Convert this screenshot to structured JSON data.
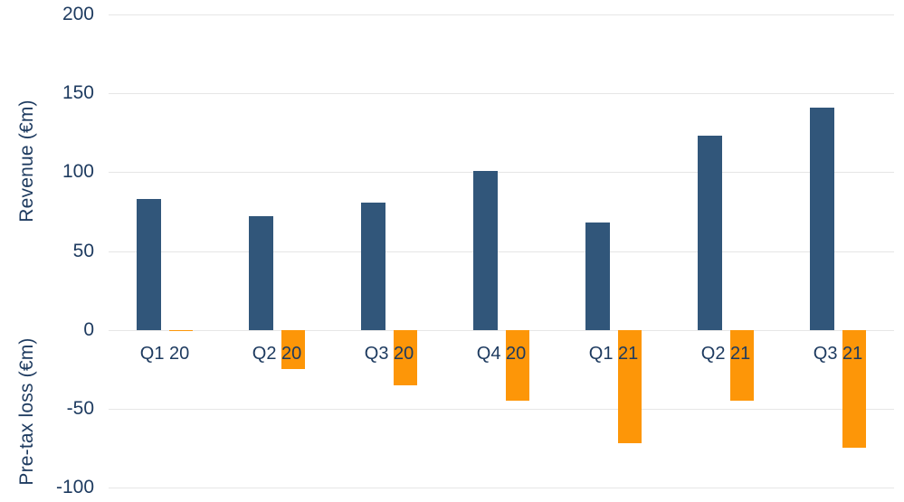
{
  "chart_data": {
    "type": "bar",
    "title": "",
    "categories": [
      "Q1 20",
      "Q2 20",
      "Q3 20",
      "Q4 20",
      "Q1 21",
      "Q2 21",
      "Q3 21"
    ],
    "series": [
      {
        "name": "Revenue (€m)",
        "color": "#31567a",
        "values": [
          83,
          72,
          81,
          101,
          68,
          123,
          141
        ]
      },
      {
        "name": "Pre-tax loss (€m)",
        "color": "#fd9608",
        "values": [
          -1,
          -25,
          -35,
          -45,
          -72,
          -45,
          -75
        ]
      }
    ],
    "ylabel_top": "Revenue (€m)",
    "ylabel_bottom": "Pre-tax loss (€m)",
    "yticks": [
      200,
      150,
      100,
      50,
      0,
      -50,
      -100
    ],
    "ylim": [
      -100,
      200
    ],
    "xlabel": "",
    "grid": "horizontal",
    "legend_position": "none",
    "colors": {
      "revenue_bar": "#31567a",
      "loss_bar": "#fd9608",
      "axis_text": "#1d3a5f",
      "gridline": "#e6e6e6",
      "background": "#ffffff"
    }
  }
}
